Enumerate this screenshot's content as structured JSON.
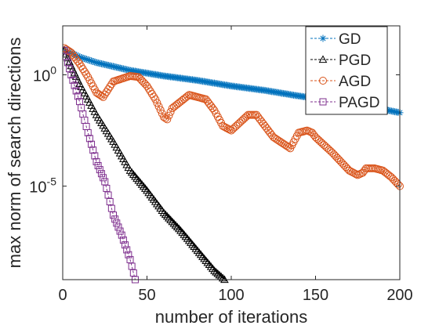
{
  "chart_data": {
    "type": "line",
    "xlabel": "number of iterations",
    "ylabel": "max norm of search directions",
    "xlim": [
      0,
      200
    ],
    "ylim_log10": [
      -9.2,
      2.2
    ],
    "yscale": "log",
    "x_ticks": [
      0,
      50,
      100,
      150,
      200
    ],
    "y_ticks": [
      {
        "log10": 0,
        "base": "10",
        "exp": "0"
      },
      {
        "log10": -5,
        "base": "10",
        "exp": "-5"
      }
    ],
    "grid": false,
    "legend_position": "top-right",
    "series": [
      {
        "name": "GD",
        "color": "#0072BD",
        "marker": "asterisk",
        "x": [
          1,
          10,
          20,
          40,
          60,
          80,
          100,
          120,
          140,
          160,
          180,
          200
        ],
        "log10_y": [
          1.15,
          0.8,
          0.55,
          0.2,
          -0.05,
          -0.25,
          -0.5,
          -0.7,
          -0.95,
          -1.15,
          -1.4,
          -1.7
        ]
      },
      {
        "name": "PGD",
        "color": "#000000",
        "marker": "triangle",
        "x": [
          1,
          5,
          10,
          20,
          30,
          40,
          50,
          60,
          70,
          80,
          90,
          96
        ],
        "log10_y": [
          1.1,
          0.4,
          -0.4,
          -1.8,
          -3.0,
          -4.3,
          -5.2,
          -6.2,
          -7.0,
          -7.9,
          -8.8,
          -9.2
        ]
      },
      {
        "name": "AGD",
        "color": "#D95319",
        "marker": "circle",
        "x": [
          1,
          5,
          10,
          15,
          20,
          24,
          30,
          40,
          45,
          50,
          55,
          60,
          62,
          65,
          75,
          85,
          90,
          95,
          100,
          110,
          115,
          120,
          122,
          125,
          135,
          140,
          145,
          148,
          150,
          160,
          170,
          175,
          178,
          180,
          185,
          190,
          195,
          200
        ],
        "log10_y": [
          1.2,
          1.0,
          0.5,
          -0.1,
          -0.8,
          -1.0,
          -0.3,
          -0.05,
          -0.1,
          -0.5,
          -1.1,
          -1.9,
          -2.0,
          -1.5,
          -0.9,
          -1.1,
          -1.6,
          -2.3,
          -2.5,
          -1.8,
          -1.8,
          -2.3,
          -2.5,
          -2.8,
          -3.3,
          -2.6,
          -2.5,
          -2.6,
          -2.8,
          -3.5,
          -4.3,
          -4.5,
          -4.4,
          -4.2,
          -4.2,
          -4.3,
          -4.6,
          -5.0
        ]
      },
      {
        "name": "PAGD",
        "color": "#7E2F8E",
        "marker": "square",
        "x": [
          1,
          5,
          10,
          15,
          20,
          25,
          30,
          35,
          40,
          43
        ],
        "log10_y": [
          1.1,
          0.0,
          -1.2,
          -2.6,
          -3.9,
          -4.8,
          -6.3,
          -7.2,
          -8.3,
          -9.2
        ]
      }
    ]
  }
}
